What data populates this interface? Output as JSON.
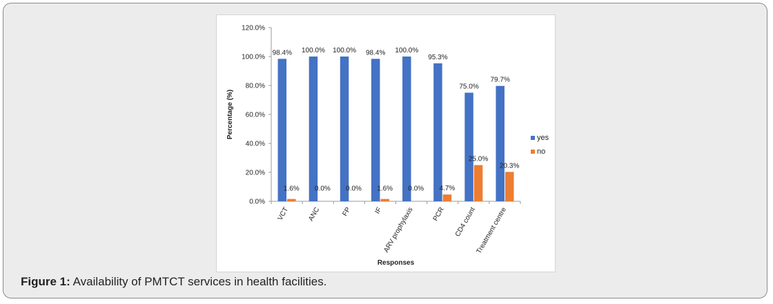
{
  "caption": {
    "label": "Figure 1:",
    "text": " Availability of PMTCT services in health facilities."
  },
  "chart_data": {
    "type": "bar",
    "title": "",
    "xlabel": "Responses",
    "ylabel": "Percentage (%)",
    "ylim": [
      0,
      120
    ],
    "yticks": [
      "0.0%",
      "20.0%",
      "40.0%",
      "60.0%",
      "80.0%",
      "100.0%",
      "120.0%"
    ],
    "ytick_values": [
      0,
      20,
      40,
      60,
      80,
      100,
      120
    ],
    "categories": [
      "VCT",
      "ANC",
      "FP",
      "IF",
      "ARV prophylaxis",
      "PCR",
      "CD4 count",
      "Treatment centre"
    ],
    "series": [
      {
        "name": "yes",
        "color": "#4472c4",
        "values": [
          98.4,
          100.0,
          100.0,
          98.4,
          100.0,
          95.3,
          75.0,
          79.7
        ],
        "labels": [
          "98.4%",
          "100.0%",
          "100.0%",
          "98.4%",
          "100.0%",
          "95.3%",
          "75.0%",
          "79.7%"
        ]
      },
      {
        "name": "no",
        "color": "#ed7d31",
        "values": [
          1.6,
          0.0,
          0.0,
          1.6,
          0.0,
          4.7,
          25.0,
          20.3
        ],
        "labels": [
          "1.6%",
          "0.0%",
          "0.0%",
          "1.6%",
          "0.0%",
          "4.7%",
          "25.0%",
          "20.3%"
        ]
      }
    ],
    "legend_position": "right",
    "grid": false
  }
}
